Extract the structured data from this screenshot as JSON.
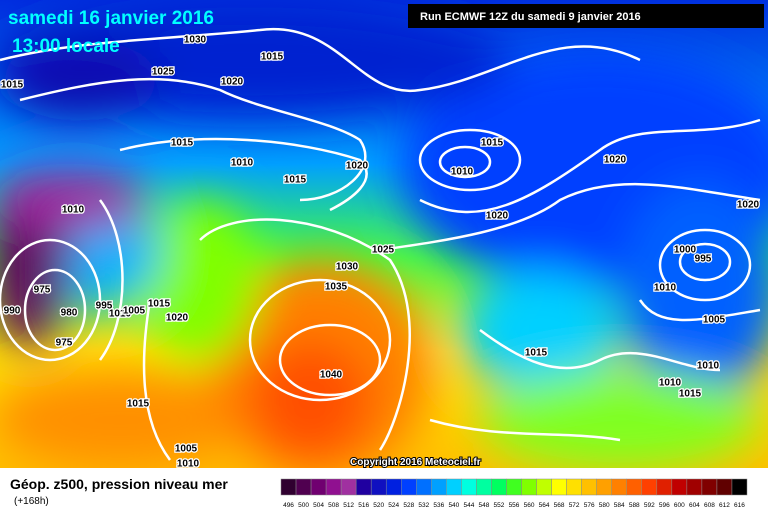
{
  "header": {
    "date": "samedi 16 janvier 2016",
    "time": "13:00 locale",
    "run": "Run ECMWF 12Z du samedi 9 janvier 2016"
  },
  "isobars": [
    "1030",
    "1015",
    "1025",
    "1020",
    "1015",
    "1015",
    "1010",
    "1015",
    "1020",
    "1015",
    "1010",
    "1020",
    "1020",
    "1010",
    "1020",
    "1025",
    "1030",
    "1035",
    "1000",
    "995",
    "1010",
    "975",
    "980",
    "995",
    "1015",
    "1020",
    "990",
    "1005",
    "1015",
    "975",
    "1040",
    "1010",
    "1010",
    "1015",
    "1015",
    "1005",
    "1010",
    "1010",
    "1005"
  ],
  "copyright": "Copyright 2016 Meteociel.fr",
  "footer": {
    "title": "Géop. z500, pression niveau mer",
    "lead": "(+168h)"
  },
  "legend": {
    "labels": [
      496,
      500,
      504,
      508,
      512,
      516,
      520,
      524,
      528,
      532,
      536,
      540,
      544,
      548,
      552,
      556,
      560,
      564,
      568,
      572,
      576,
      580,
      584,
      588,
      592,
      596,
      600,
      604,
      608,
      612,
      616
    ],
    "colors": [
      "#300030",
      "#500050",
      "#700070",
      "#901090",
      "#a030a0",
      "#2000a0",
      "#1010c0",
      "#0020e0",
      "#0040ff",
      "#0070ff",
      "#00a0ff",
      "#00d0ff",
      "#00ffe0",
      "#00ffa0",
      "#00ff60",
      "#40ff20",
      "#80ff00",
      "#c0ff00",
      "#ffff00",
      "#ffe000",
      "#ffc000",
      "#ffa000",
      "#ff8000",
      "#ff6000",
      "#ff4000",
      "#e02000",
      "#c00000",
      "#a00000",
      "#800000",
      "#600000",
      "#000000"
    ]
  }
}
